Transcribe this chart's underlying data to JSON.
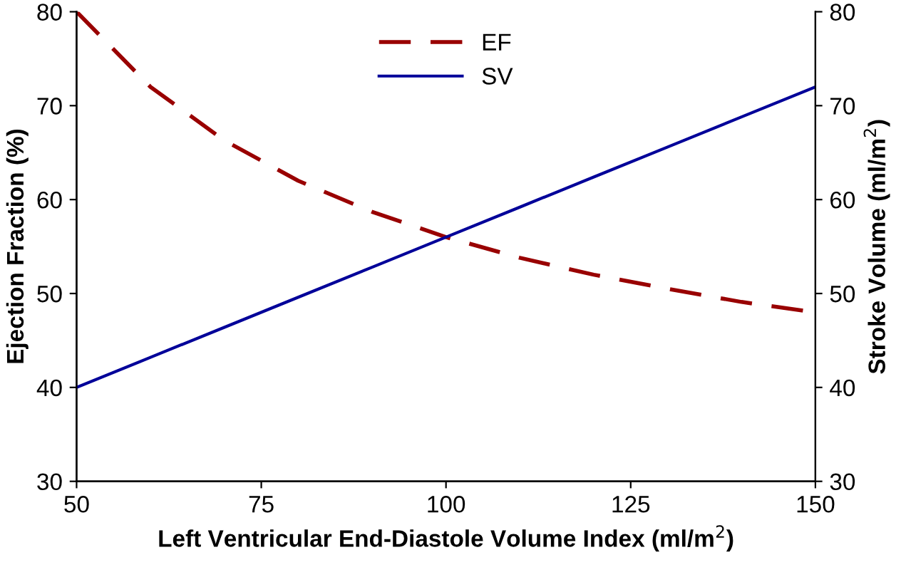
{
  "chart_data": {
    "type": "line",
    "xlabel": "Left Ventricular End-Diastole Volume Index (ml/m$^{2}$)",
    "ylabel": "Ejection Fraction (%)",
    "y2label": "Stroke Volume (ml/m$^{2}$)",
    "x": [
      50,
      60,
      70,
      80,
      90,
      100,
      110,
      120,
      130,
      140,
      150
    ],
    "series": [
      {
        "name": "EF",
        "color": "#990000",
        "line_style": "dashed",
        "values": [
          80,
          72,
          66.3,
          62,
          58.7,
          56,
          53.8,
          52,
          50.5,
          49.1,
          48
        ]
      },
      {
        "name": "SV",
        "color": "#000099",
        "line_style": "solid",
        "axis": "y2",
        "values": [
          40,
          43.2,
          46.4,
          49.6,
          52.8,
          56,
          59.2,
          62.4,
          65.6,
          68.8,
          72
        ]
      }
    ],
    "xlim": [
      50,
      150
    ],
    "xticks": [
      50,
      75,
      100,
      125,
      150
    ],
    "ylim": [
      30,
      80
    ],
    "yticks": [
      30,
      40,
      50,
      60,
      70,
      80
    ],
    "y2lim": [
      30,
      80
    ],
    "y2ticks": [
      30,
      40,
      50,
      60,
      70,
      80
    ],
    "grid": false,
    "legend": "top",
    "marker": "none"
  }
}
